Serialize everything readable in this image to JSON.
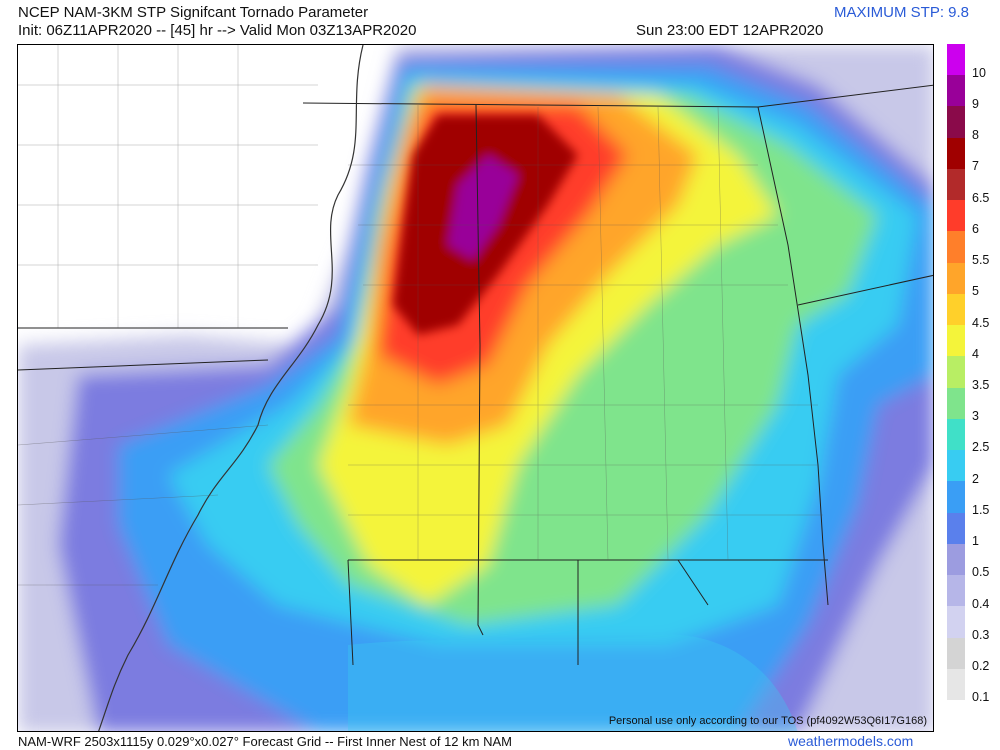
{
  "header": {
    "title": "NCEP NAM-3KM STP Signifcant Tornado Parameter",
    "init": "Init: 06Z11APR2020 -- [45] hr --> Valid Mon 03Z13APR2020",
    "valid_local": "Sun 23:00 EDT 12APR2020",
    "maximum": "MAXIMUM STP: 9.8"
  },
  "map": {
    "tos_notice": "Personal use only according to our TOS (pf4092W53Q6I17G168)"
  },
  "legend": {
    "levels": [
      {
        "label": "10",
        "color": "#cc00ee"
      },
      {
        "label": "9",
        "color": "#990099"
      },
      {
        "label": "8",
        "color": "#8a0a4a"
      },
      {
        "label": "7",
        "color": "#a00000"
      },
      {
        "label": "6.5",
        "color": "#b22a2a"
      },
      {
        "label": "6",
        "color": "#ff3c2a"
      },
      {
        "label": "5.5",
        "color": "#ff7f2a"
      },
      {
        "label": "5",
        "color": "#ffa52a"
      },
      {
        "label": "4.5",
        "color": "#ffd02a"
      },
      {
        "label": "4",
        "color": "#f4f43a"
      },
      {
        "label": "3.5",
        "color": "#b8ee64"
      },
      {
        "label": "3",
        "color": "#7fe48c"
      },
      {
        "label": "2.5",
        "color": "#40e0c8"
      },
      {
        "label": "2",
        "color": "#38ccf2"
      },
      {
        "label": "1.5",
        "color": "#3a9ef5"
      },
      {
        "label": "1",
        "color": "#5a80ec"
      },
      {
        "label": "0.5",
        "color": "#9c9ce0"
      },
      {
        "label": "0.4",
        "color": "#b6b6e8"
      },
      {
        "label": "0.3",
        "color": "#d2d2f0"
      },
      {
        "label": "0.2",
        "color": "#d4d4d4"
      },
      {
        "label": "0.1",
        "color": "#e6e6e6"
      }
    ]
  },
  "footer": {
    "grid_info": "NAM-WRF 2503x1115y 0.029°x0.027° Forecast Grid -- First Inner Nest of 12 km NAM",
    "site": "weathermodels.com"
  }
}
